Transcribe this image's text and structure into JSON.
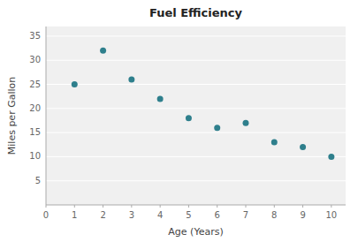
{
  "chart_data": {
    "type": "scatter",
    "title": "Fuel Efficiency",
    "xlabel": "Age (Years)",
    "ylabel": "Miles per Gallon",
    "x": [
      1,
      2,
      3,
      4,
      5,
      6,
      7,
      8,
      9,
      10
    ],
    "y": [
      25,
      32,
      26,
      22,
      18,
      16,
      17,
      13,
      12,
      10
    ],
    "xlim": [
      0,
      10.5
    ],
    "ylim": [
      0,
      37
    ],
    "xticks": [
      0,
      1,
      2,
      3,
      4,
      5,
      6,
      7,
      8,
      9,
      10
    ],
    "yticks": [
      5,
      10,
      15,
      20,
      25,
      30,
      35
    ],
    "color": "#2e7f8c",
    "grid": "y"
  }
}
